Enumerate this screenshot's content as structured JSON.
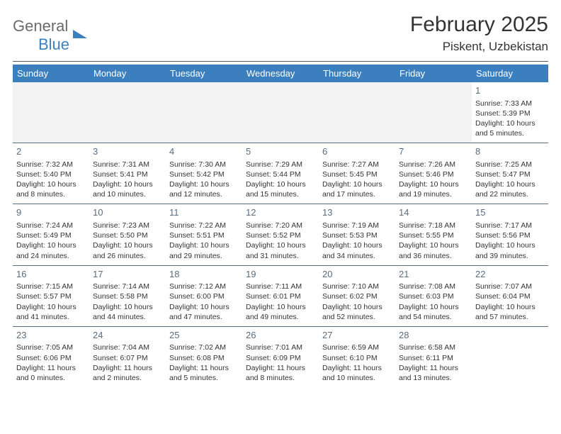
{
  "logo": {
    "word1": "General",
    "word2": "Blue"
  },
  "title": "February 2025",
  "location": "Piskent, Uzbekistan",
  "colors": {
    "header_bar": "#3b7fbf",
    "header_text": "#ffffff",
    "daynum": "#5a6d80",
    "rule": "#5a6d80",
    "blank_bg": "#f3f3f3",
    "body_text": "#333333",
    "logo_gray": "#6b6b6b",
    "logo_blue": "#3b7fbf"
  },
  "weekdays": [
    "Sunday",
    "Monday",
    "Tuesday",
    "Wednesday",
    "Thursday",
    "Friday",
    "Saturday"
  ],
  "days": {
    "1": {
      "sunrise": "Sunrise: 7:33 AM",
      "sunset": "Sunset: 5:39 PM",
      "day1": "Daylight: 10 hours",
      "day2": "and 5 minutes."
    },
    "2": {
      "sunrise": "Sunrise: 7:32 AM",
      "sunset": "Sunset: 5:40 PM",
      "day1": "Daylight: 10 hours",
      "day2": "and 8 minutes."
    },
    "3": {
      "sunrise": "Sunrise: 7:31 AM",
      "sunset": "Sunset: 5:41 PM",
      "day1": "Daylight: 10 hours",
      "day2": "and 10 minutes."
    },
    "4": {
      "sunrise": "Sunrise: 7:30 AM",
      "sunset": "Sunset: 5:42 PM",
      "day1": "Daylight: 10 hours",
      "day2": "and 12 minutes."
    },
    "5": {
      "sunrise": "Sunrise: 7:29 AM",
      "sunset": "Sunset: 5:44 PM",
      "day1": "Daylight: 10 hours",
      "day2": "and 15 minutes."
    },
    "6": {
      "sunrise": "Sunrise: 7:27 AM",
      "sunset": "Sunset: 5:45 PM",
      "day1": "Daylight: 10 hours",
      "day2": "and 17 minutes."
    },
    "7": {
      "sunrise": "Sunrise: 7:26 AM",
      "sunset": "Sunset: 5:46 PM",
      "day1": "Daylight: 10 hours",
      "day2": "and 19 minutes."
    },
    "8": {
      "sunrise": "Sunrise: 7:25 AM",
      "sunset": "Sunset: 5:47 PM",
      "day1": "Daylight: 10 hours",
      "day2": "and 22 minutes."
    },
    "9": {
      "sunrise": "Sunrise: 7:24 AM",
      "sunset": "Sunset: 5:49 PM",
      "day1": "Daylight: 10 hours",
      "day2": "and 24 minutes."
    },
    "10": {
      "sunrise": "Sunrise: 7:23 AM",
      "sunset": "Sunset: 5:50 PM",
      "day1": "Daylight: 10 hours",
      "day2": "and 26 minutes."
    },
    "11": {
      "sunrise": "Sunrise: 7:22 AM",
      "sunset": "Sunset: 5:51 PM",
      "day1": "Daylight: 10 hours",
      "day2": "and 29 minutes."
    },
    "12": {
      "sunrise": "Sunrise: 7:20 AM",
      "sunset": "Sunset: 5:52 PM",
      "day1": "Daylight: 10 hours",
      "day2": "and 31 minutes."
    },
    "13": {
      "sunrise": "Sunrise: 7:19 AM",
      "sunset": "Sunset: 5:53 PM",
      "day1": "Daylight: 10 hours",
      "day2": "and 34 minutes."
    },
    "14": {
      "sunrise": "Sunrise: 7:18 AM",
      "sunset": "Sunset: 5:55 PM",
      "day1": "Daylight: 10 hours",
      "day2": "and 36 minutes."
    },
    "15": {
      "sunrise": "Sunrise: 7:17 AM",
      "sunset": "Sunset: 5:56 PM",
      "day1": "Daylight: 10 hours",
      "day2": "and 39 minutes."
    },
    "16": {
      "sunrise": "Sunrise: 7:15 AM",
      "sunset": "Sunset: 5:57 PM",
      "day1": "Daylight: 10 hours",
      "day2": "and 41 minutes."
    },
    "17": {
      "sunrise": "Sunrise: 7:14 AM",
      "sunset": "Sunset: 5:58 PM",
      "day1": "Daylight: 10 hours",
      "day2": "and 44 minutes."
    },
    "18": {
      "sunrise": "Sunrise: 7:12 AM",
      "sunset": "Sunset: 6:00 PM",
      "day1": "Daylight: 10 hours",
      "day2": "and 47 minutes."
    },
    "19": {
      "sunrise": "Sunrise: 7:11 AM",
      "sunset": "Sunset: 6:01 PM",
      "day1": "Daylight: 10 hours",
      "day2": "and 49 minutes."
    },
    "20": {
      "sunrise": "Sunrise: 7:10 AM",
      "sunset": "Sunset: 6:02 PM",
      "day1": "Daylight: 10 hours",
      "day2": "and 52 minutes."
    },
    "21": {
      "sunrise": "Sunrise: 7:08 AM",
      "sunset": "Sunset: 6:03 PM",
      "day1": "Daylight: 10 hours",
      "day2": "and 54 minutes."
    },
    "22": {
      "sunrise": "Sunrise: 7:07 AM",
      "sunset": "Sunset: 6:04 PM",
      "day1": "Daylight: 10 hours",
      "day2": "and 57 minutes."
    },
    "23": {
      "sunrise": "Sunrise: 7:05 AM",
      "sunset": "Sunset: 6:06 PM",
      "day1": "Daylight: 11 hours",
      "day2": "and 0 minutes."
    },
    "24": {
      "sunrise": "Sunrise: 7:04 AM",
      "sunset": "Sunset: 6:07 PM",
      "day1": "Daylight: 11 hours",
      "day2": "and 2 minutes."
    },
    "25": {
      "sunrise": "Sunrise: 7:02 AM",
      "sunset": "Sunset: 6:08 PM",
      "day1": "Daylight: 11 hours",
      "day2": "and 5 minutes."
    },
    "26": {
      "sunrise": "Sunrise: 7:01 AM",
      "sunset": "Sunset: 6:09 PM",
      "day1": "Daylight: 11 hours",
      "day2": "and 8 minutes."
    },
    "27": {
      "sunrise": "Sunrise: 6:59 AM",
      "sunset": "Sunset: 6:10 PM",
      "day1": "Daylight: 11 hours",
      "day2": "and 10 minutes."
    },
    "28": {
      "sunrise": "Sunrise: 6:58 AM",
      "sunset": "Sunset: 6:11 PM",
      "day1": "Daylight: 11 hours",
      "day2": "and 13 minutes."
    }
  },
  "daynums": {
    "1": "1",
    "2": "2",
    "3": "3",
    "4": "4",
    "5": "5",
    "6": "6",
    "7": "7",
    "8": "8",
    "9": "9",
    "10": "10",
    "11": "11",
    "12": "12",
    "13": "13",
    "14": "14",
    "15": "15",
    "16": "16",
    "17": "17",
    "18": "18",
    "19": "19",
    "20": "20",
    "21": "21",
    "22": "22",
    "23": "23",
    "24": "24",
    "25": "25",
    "26": "26",
    "27": "27",
    "28": "28"
  }
}
